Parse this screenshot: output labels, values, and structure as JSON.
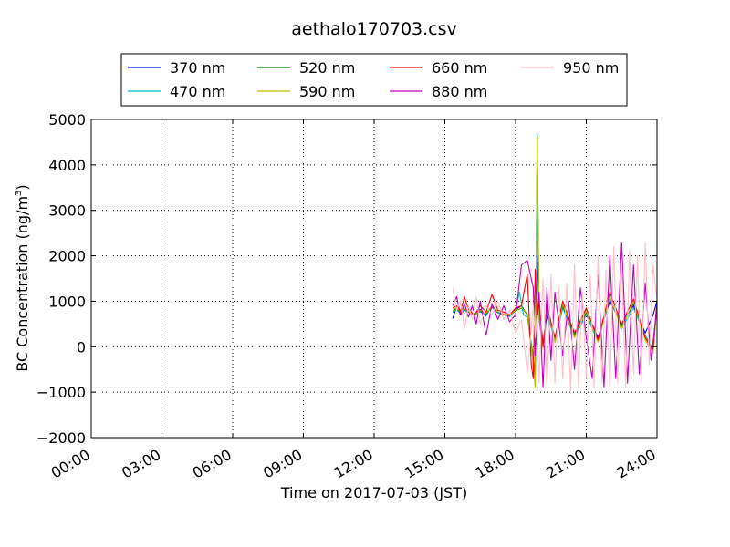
{
  "chart_data": {
    "type": "line",
    "title": "aethalo170703.csv",
    "xlabel": "Time on 2017-07-03 (JST)",
    "ylabel_main": "BC Concentration (ng/m",
    "ylabel_sup": "3",
    "ylabel_tail": ")",
    "xlim": [
      "00:00",
      "24:00"
    ],
    "ylim": [
      -2000,
      5000
    ],
    "grid": true,
    "legend_position": "top (above plot)",
    "x_ticks": [
      "00:00",
      "03:00",
      "06:00",
      "09:00",
      "12:00",
      "15:00",
      "18:00",
      "21:00",
      "24:00"
    ],
    "x_tick_hours": [
      0,
      3,
      6,
      9,
      12,
      15,
      18,
      21,
      24
    ],
    "y_ticks": [
      5000,
      4000,
      3000,
      2000,
      1000,
      0,
      -1000,
      -2000
    ],
    "y_tick_labels": [
      "5000",
      "4000",
      "3000",
      "2000",
      "1000",
      "0",
      "−1000",
      "−2000"
    ],
    "series": [
      {
        "name": "370 nm",
        "color": "#0000ff",
        "x": [
          "15:20",
          "15:30",
          "15:40",
          "15:50",
          "16:00",
          "16:15",
          "16:30",
          "16:45",
          "17:00",
          "17:15",
          "17:30",
          "17:45",
          "18:00",
          "18:15",
          "18:30",
          "18:45",
          "18:50",
          "18:55",
          "19:00",
          "19:10",
          "19:20",
          "19:40",
          "20:00",
          "20:30",
          "21:00",
          "21:30",
          "22:00",
          "22:30",
          "23:00",
          "23:30",
          "23:50",
          "24:00"
        ],
        "y": [
          620,
          880,
          700,
          810,
          760,
          700,
          820,
          680,
          900,
          760,
          720,
          680,
          820,
          900,
          700,
          -300,
          -500,
          2000,
          800,
          100,
          700,
          200,
          900,
          300,
          800,
          200,
          1000,
          500,
          900,
          300,
          700,
          1000
        ]
      },
      {
        "name": "470 nm",
        "color": "#00bfbf",
        "x": [
          "15:20",
          "15:30",
          "15:40",
          "15:50",
          "16:00",
          "16:15",
          "16:30",
          "16:45",
          "17:00",
          "17:15",
          "17:30",
          "17:45",
          "18:00",
          "18:10",
          "18:20",
          "18:30",
          "18:45",
          "18:50",
          "18:55",
          "19:00",
          "19:10",
          "19:20",
          "19:40",
          "20:00",
          "20:30",
          "21:00",
          "21:30",
          "22:00",
          "22:30",
          "23:00",
          "23:30",
          "23:50",
          "24:00"
        ],
        "y": [
          750,
          820,
          720,
          800,
          780,
          720,
          760,
          700,
          860,
          740,
          700,
          660,
          800,
          1200,
          700,
          650,
          -200,
          -600,
          3300,
          700,
          100,
          800,
          100,
          850,
          200,
          700,
          100,
          1100,
          400,
          850,
          250,
          -50,
          900
        ]
      },
      {
        "name": "520 nm",
        "color": "#008000",
        "x": [
          "15:20",
          "15:30",
          "15:40",
          "15:50",
          "16:00",
          "16:15",
          "16:30",
          "16:45",
          "17:00",
          "17:15",
          "17:30",
          "17:45",
          "18:00",
          "18:15",
          "18:30",
          "18:45",
          "18:50",
          "18:55",
          "19:00",
          "19:10",
          "19:20",
          "19:40",
          "20:00",
          "20:30",
          "21:00",
          "21:30",
          "22:00",
          "22:30",
          "23:00",
          "23:30",
          "23:50",
          "24:00"
        ],
        "y": [
          780,
          850,
          740,
          820,
          760,
          690,
          780,
          720,
          880,
          760,
          710,
          690,
          790,
          850,
          720,
          -350,
          -700,
          4650,
          600,
          0,
          900,
          150,
          900,
          250,
          750,
          150,
          1050,
          450,
          950,
          200,
          -100,
          950
        ]
      },
      {
        "name": "590 nm",
        "color": "#bfbf00",
        "x": [
          "15:20",
          "15:30",
          "15:40",
          "15:50",
          "16:00",
          "16:15",
          "16:30",
          "16:45",
          "17:00",
          "17:15",
          "17:30",
          "17:45",
          "18:00",
          "18:15",
          "18:30",
          "18:45",
          "18:50",
          "18:55",
          "19:00",
          "19:10",
          "19:20",
          "19:40",
          "20:00",
          "20:30",
          "21:00",
          "21:30",
          "22:00",
          "22:30",
          "23:00",
          "23:30",
          "23:50",
          "24:00"
        ],
        "y": [
          800,
          870,
          760,
          840,
          770,
          700,
          800,
          740,
          900,
          770,
          720,
          700,
          800,
          860,
          730,
          -400,
          -900,
          4600,
          650,
          -50,
          950,
          100,
          950,
          200,
          800,
          100,
          1100,
          400,
          1000,
          150,
          -150,
          1000
        ]
      },
      {
        "name": "660 nm",
        "color": "#ff0000",
        "x": [
          "15:20",
          "15:30",
          "15:40",
          "15:50",
          "16:00",
          "16:15",
          "16:30",
          "16:45",
          "17:00",
          "17:15",
          "17:30",
          "17:45",
          "18:00",
          "18:15",
          "18:30",
          "18:40",
          "18:45",
          "18:50",
          "18:55",
          "19:00",
          "19:10",
          "19:20",
          "19:40",
          "20:00",
          "20:30",
          "21:00",
          "21:30",
          "22:00",
          "22:30",
          "23:00",
          "23:30",
          "23:50",
          "24:00"
        ],
        "y": [
          850,
          900,
          780,
          1100,
          820,
          700,
          900,
          760,
          1150,
          800,
          760,
          700,
          850,
          900,
          1600,
          -400,
          -700,
          1700,
          600,
          1000,
          0,
          900,
          200,
          1000,
          300,
          850,
          150,
          1200,
          500,
          1050,
          200,
          -50,
          1000
        ]
      },
      {
        "name": "880 nm",
        "color": "#bf00bf",
        "x": [
          "15:20",
          "15:30",
          "15:40",
          "15:50",
          "16:00",
          "16:10",
          "16:20",
          "16:30",
          "16:45",
          "17:00",
          "17:15",
          "17:30",
          "17:45",
          "18:00",
          "18:15",
          "18:30",
          "18:45",
          "18:50",
          "18:55",
          "19:00",
          "19:10",
          "19:20",
          "19:30",
          "19:40",
          "20:00",
          "20:15",
          "20:30",
          "20:45",
          "21:00",
          "21:15",
          "21:30",
          "21:45",
          "22:00",
          "22:15",
          "22:30",
          "22:45",
          "23:00",
          "23:15",
          "23:30",
          "23:45",
          "24:00"
        ],
        "y": [
          900,
          1100,
          700,
          950,
          650,
          900,
          500,
          1000,
          250,
          950,
          600,
          900,
          550,
          700,
          1800,
          1900,
          1300,
          -200,
          700,
          1200,
          -900,
          1300,
          -300,
          1200,
          -200,
          1000,
          -500,
          1300,
          200,
          -700,
          1600,
          -900,
          2000,
          -700,
          2300,
          -800,
          1800,
          -600,
          1400,
          -300,
          900
        ]
      },
      {
        "name": "950 nm",
        "color": "#ffc0cb",
        "x": [
          "15:20",
          "15:30",
          "15:40",
          "15:50",
          "16:00",
          "16:10",
          "16:20",
          "16:30",
          "16:45",
          "17:00",
          "17:15",
          "17:30",
          "17:45",
          "18:00",
          "18:15",
          "18:30",
          "18:45",
          "18:50",
          "18:55",
          "19:00",
          "19:10",
          "19:20",
          "19:30",
          "19:40",
          "19:50",
          "20:00",
          "20:10",
          "20:20",
          "20:30",
          "20:40",
          "20:50",
          "21:00",
          "21:10",
          "21:20",
          "21:30",
          "21:40",
          "21:50",
          "22:00",
          "22:10",
          "22:20",
          "22:30",
          "22:40",
          "22:50",
          "23:00",
          "23:10",
          "23:20",
          "23:30",
          "23:40",
          "23:50",
          "24:00"
        ],
        "y": [
          1300,
          800,
          1000,
          400,
          900,
          600,
          1100,
          500,
          900,
          700,
          1000,
          600,
          800,
          300,
          600,
          -600,
          900,
          200,
          700,
          -800,
          1500,
          -900,
          1600,
          -800,
          1300,
          -700,
          1400,
          -1000,
          1800,
          -900,
          1200,
          -700,
          1600,
          -900,
          2000,
          -800,
          1700,
          -1000,
          2200,
          -800,
          1900,
          -900,
          2100,
          -600,
          2000,
          -800,
          2300,
          -400,
          1800,
          1000
        ]
      }
    ]
  }
}
